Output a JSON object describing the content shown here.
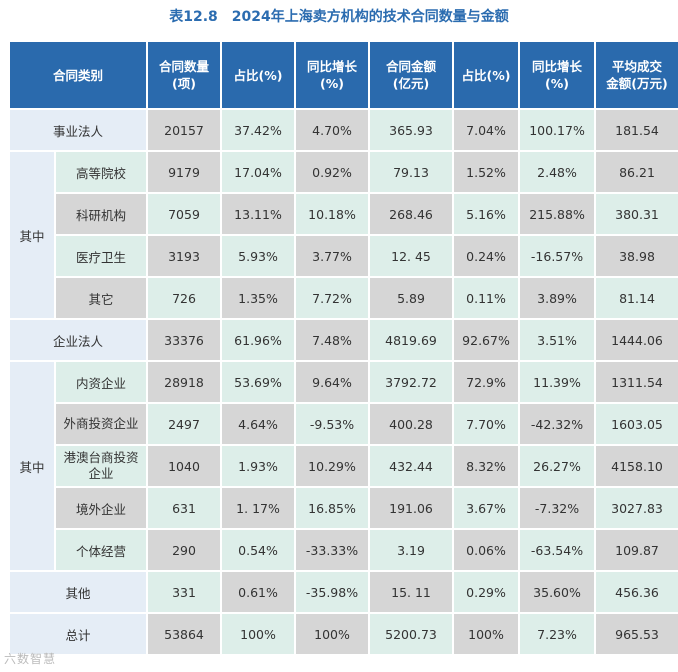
{
  "title": "表12.8　2024年上海卖方机构的技术合同数量与金额",
  "headers": [
    "合同类别",
    "合同数量\n(项)",
    "占比(%)",
    "同比增长\n(%)",
    "合同金额\n(亿元)",
    "占比(%)",
    "同比增长\n(%)",
    "平均成交\n金额(万元)"
  ],
  "group_label_1": "其中",
  "group_label_2": "其中",
  "rows": [
    {
      "label": "事业法人",
      "values": [
        "20157",
        "37.42%",
        "4.70%",
        "365.93",
        "7.04%",
        "100.17%",
        "181.54"
      ]
    },
    {
      "label": "高等院校",
      "values": [
        "9179",
        "17.04%",
        "0.92%",
        "79.13",
        "1.52%",
        "2.48%",
        "86.21"
      ]
    },
    {
      "label": "科研机构",
      "values": [
        "7059",
        "13.11%",
        "10.18%",
        "268.46",
        "5.16%",
        "215.88%",
        "380.31"
      ]
    },
    {
      "label": "医疗卫生",
      "values": [
        "3193",
        "5.93%",
        "3.77%",
        "12. 45",
        "0.24%",
        "-16.57%",
        "38.98"
      ]
    },
    {
      "label": "其它",
      "values": [
        "726",
        "1.35%",
        "7.72%",
        "5.89",
        "0.11%",
        "3.89%",
        "81.14"
      ]
    },
    {
      "label": "企业法人",
      "values": [
        "33376",
        "61.96%",
        "7.48%",
        "4819.69",
        "92.67%",
        "3.51%",
        "1444.06"
      ]
    },
    {
      "label": "内资企业",
      "values": [
        "28918",
        "53.69%",
        "9.64%",
        "3792.72",
        "72.9%",
        "11.39%",
        "1311.54"
      ]
    },
    {
      "label": "外商投资企业",
      "values": [
        "2497",
        "4.64%",
        "-9.53%",
        "400.28",
        "7.70%",
        "-42.32%",
        "1603.05"
      ]
    },
    {
      "label": "港澳台商投资企业",
      "values": [
        "1040",
        "1.93%",
        "10.29%",
        "432.44",
        "8.32%",
        "26.27%",
        "4158.10"
      ]
    },
    {
      "label": "境外企业",
      "values": [
        "631",
        "1. 17%",
        "16.85%",
        "191.06",
        "3.67%",
        "-7.32%",
        "3027.83"
      ]
    },
    {
      "label": "个体经营",
      "values": [
        "290",
        "0.54%",
        "-33.33%",
        "3.19",
        "0.06%",
        "-63.54%",
        "109.87"
      ]
    },
    {
      "label": "其他",
      "values": [
        "331",
        "0.61%",
        "-35.98%",
        "15. 11",
        "0.29%",
        "35.60%",
        "456.36"
      ]
    },
    {
      "label": "总计",
      "values": [
        "53864",
        "100%",
        "100%",
        "5200.73",
        "100%",
        "7.23%",
        "965.53"
      ]
    }
  ],
  "watermark": "六数智慧",
  "colors": {
    "header": "#2a6aad",
    "category": "#e5edf6",
    "green": "#ddeee9",
    "gray": "#d6d6d6",
    "title": "#2b6cb0"
  }
}
